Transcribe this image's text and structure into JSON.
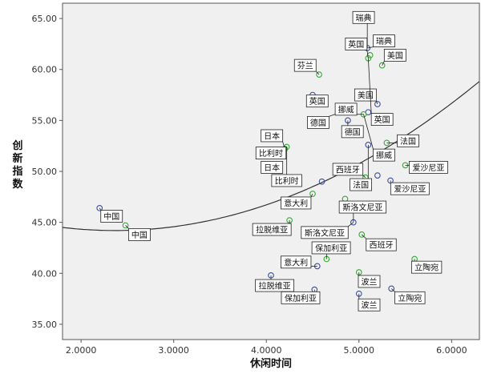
{
  "chart_data": {
    "type": "scatter",
    "xlabel": "休闲时间",
    "ylabel": "创新指数",
    "xlim": [
      1.8,
      6.3
    ],
    "ylim": [
      33.5,
      66.5
    ],
    "xticks": [
      2.0,
      3.0,
      4.0,
      5.0,
      6.0
    ],
    "xtick_labels": [
      "2.0000",
      "3.0000",
      "4.0000",
      "5.0000",
      "6.0000"
    ],
    "yticks": [
      35.0,
      40.0,
      45.0,
      50.0,
      55.0,
      60.0,
      65.0
    ],
    "ytick_labels": [
      "35.00",
      "40.00",
      "45.00",
      "50.00",
      "55.00",
      "60.00",
      "65.00"
    ],
    "grid": false,
    "colors": {
      "series_a": "#3a4fa0",
      "series_b": "#3aa83a",
      "fit_line": "#333333",
      "plot_bg": "#f0f0f0"
    },
    "series": [
      {
        "points": [
          {
            "x": 2.2,
            "y": 46.4,
            "label": "中国"
          },
          {
            "x": 4.0,
            "y": 50.3,
            "label": "日本"
          },
          {
            "x": 4.6,
            "y": 49.0,
            "label": "比利时"
          },
          {
            "x": 5.09,
            "y": 62.1,
            "label": "瑞典"
          },
          {
            "x": 4.5,
            "y": 57.5,
            "label": "英国"
          },
          {
            "x": 5.2,
            "y": 56.6,
            "label": "美国"
          },
          {
            "x": 4.88,
            "y": 55.0,
            "label": "德国"
          },
          {
            "x": 5.1,
            "y": 55.8,
            "label": "挪威"
          },
          {
            "x": 5.1,
            "y": 52.6,
            "label": "法国"
          },
          {
            "x": 4.94,
            "y": 45.0,
            "label": "斯洛文尼亚"
          },
          {
            "x": 5.2,
            "y": 49.6,
            "label": "西班牙"
          },
          {
            "x": 5.34,
            "y": 49.1,
            "label": "爱沙尼亚"
          },
          {
            "x": 4.55,
            "y": 40.7,
            "label": "意大利"
          },
          {
            "x": 4.05,
            "y": 39.8,
            "label": "拉脱维亚"
          },
          {
            "x": 4.52,
            "y": 38.4,
            "label": "保加利亚"
          },
          {
            "x": 5.0,
            "y": 38.0,
            "label": "波兰"
          },
          {
            "x": 5.35,
            "y": 38.5,
            "label": "立陶宛"
          }
        ]
      },
      {
        "points": [
          {
            "x": 2.48,
            "y": 44.7,
            "label": "中国"
          },
          {
            "x": 4.2,
            "y": 52.2,
            "label": "日本"
          },
          {
            "x": 4.22,
            "y": 52.4,
            "label": "比利时"
          },
          {
            "x": 4.25,
            "y": 45.2,
            "label": "拉脱维亚"
          },
          {
            "x": 4.5,
            "y": 47.8,
            "label": "意大利"
          },
          {
            "x": 4.65,
            "y": 41.4,
            "label": "保加利亚"
          },
          {
            "x": 4.57,
            "y": 59.5,
            "label": "芬兰"
          },
          {
            "x": 4.8,
            "y": 55.8,
            "label": "德国"
          },
          {
            "x": 5.12,
            "y": 61.4,
            "label": "瑞典"
          },
          {
            "x": 5.1,
            "y": 61.1,
            "label": "英国"
          },
          {
            "x": 5.25,
            "y": 60.4,
            "label": "美国"
          },
          {
            "x": 5.05,
            "y": 55.6,
            "label": "挪威"
          },
          {
            "x": 5.3,
            "y": 52.8,
            "label": "法国"
          },
          {
            "x": 5.07,
            "y": 49.4,
            "label": "西班牙"
          },
          {
            "x": 5.5,
            "y": 50.6,
            "label": "爱沙尼亚"
          },
          {
            "x": 4.85,
            "y": 47.3,
            "label": "斯洛文尼亚"
          },
          {
            "x": 5.0,
            "y": 40.1,
            "label": "波兰"
          },
          {
            "x": 5.6,
            "y": 41.4,
            "label": "立陶宛"
          },
          {
            "x": 5.03,
            "y": 43.8,
            "label": "西班牙"
          }
        ]
      }
    ],
    "fit_line": {
      "type": "quadratic",
      "coefficients": [
        49.5,
        -4.48,
        0.946
      ]
    },
    "annotations": [
      {
        "text": "芬兰",
        "x": 4.42,
        "y": 60.4
      },
      {
        "text": "英国",
        "x": 4.55,
        "y": 56.9
      },
      {
        "text": "德国",
        "x": 4.56,
        "y": 54.8
      },
      {
        "text": "瑞典",
        "x": 5.05,
        "y": 65.1
      },
      {
        "text": "英国",
        "x": 4.97,
        "y": 62.5
      },
      {
        "text": "瑞典",
        "x": 5.27,
        "y": 62.8
      },
      {
        "text": "美国",
        "x": 5.39,
        "y": 61.4
      },
      {
        "text": "美国",
        "x": 5.07,
        "y": 57.5
      },
      {
        "text": "挪威",
        "x": 4.86,
        "y": 56.1
      },
      {
        "text": "英国",
        "x": 5.25,
        "y": 55.1
      },
      {
        "text": "德国",
        "x": 4.93,
        "y": 53.9
      },
      {
        "text": "日本",
        "x": 4.06,
        "y": 53.5
      },
      {
        "text": "比利时",
        "x": 4.05,
        "y": 51.8
      },
      {
        "text": "日本",
        "x": 4.06,
        "y": 50.4
      },
      {
        "text": "比利时",
        "x": 4.22,
        "y": 49.1
      },
      {
        "text": "法国",
        "x": 5.53,
        "y": 53.0
      },
      {
        "text": "挪威",
        "x": 5.27,
        "y": 51.6
      },
      {
        "text": "西班牙",
        "x": 4.88,
        "y": 50.2
      },
      {
        "text": "爱沙尼亚",
        "x": 5.75,
        "y": 50.4
      },
      {
        "text": "法国",
        "x": 5.02,
        "y": 48.7
      },
      {
        "text": "爱沙尼亚",
        "x": 5.55,
        "y": 48.3
      },
      {
        "text": "意大利",
        "x": 4.32,
        "y": 46.9
      },
      {
        "text": "斯洛文尼亚",
        "x": 5.04,
        "y": 46.5
      },
      {
        "text": "拉脱维亚",
        "x": 4.06,
        "y": 44.3
      },
      {
        "text": "斯洛文尼亚",
        "x": 4.63,
        "y": 44.0
      },
      {
        "text": "保加利亚",
        "x": 4.7,
        "y": 42.5
      },
      {
        "text": "西班牙",
        "x": 5.24,
        "y": 42.8
      },
      {
        "text": "意大利",
        "x": 4.32,
        "y": 41.1
      },
      {
        "text": "立陶宛",
        "x": 5.73,
        "y": 40.6
      },
      {
        "text": "拉脱维亚",
        "x": 4.09,
        "y": 38.8
      },
      {
        "text": "波兰",
        "x": 5.11,
        "y": 39.2
      },
      {
        "text": "保加利亚",
        "x": 4.37,
        "y": 37.6
      },
      {
        "text": "立陶宛",
        "x": 5.55,
        "y": 37.6
      },
      {
        "text": "波兰",
        "x": 5.11,
        "y": 36.9
      },
      {
        "text": "中国",
        "x": 2.33,
        "y": 45.6
      },
      {
        "text": "中国",
        "x": 2.63,
        "y": 43.8
      }
    ]
  }
}
